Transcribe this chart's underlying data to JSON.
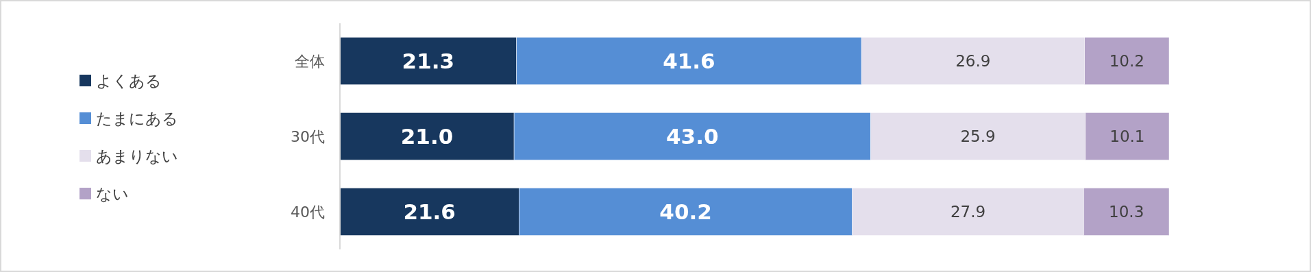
{
  "chart_data": {
    "type": "bar",
    "orientation": "horizontal",
    "stacked": true,
    "legend": "left",
    "categories": [
      "全体",
      "30代",
      "40代"
    ],
    "series": [
      {
        "name": "よくある",
        "color": "#17375e",
        "values": [
          21.3,
          21.0,
          21.6
        ],
        "value_labels": [
          "21.3",
          "21.0",
          "21.6"
        ]
      },
      {
        "name": "たまにある",
        "color": "#558ed5",
        "values": [
          41.6,
          43.0,
          40.2
        ],
        "value_labels": [
          "41.6",
          "43.0",
          "40.2"
        ]
      },
      {
        "name": "あまりない",
        "color": "#e4dfec",
        "values": [
          26.9,
          25.9,
          27.9
        ],
        "value_labels": [
          "26.9",
          "25.9",
          "27.9"
        ]
      },
      {
        "name": "ない",
        "color": "#b3a2c7",
        "values": [
          10.2,
          10.1,
          10.3
        ],
        "value_labels": [
          "10.2",
          "10.1",
          "10.3"
        ]
      }
    ]
  }
}
